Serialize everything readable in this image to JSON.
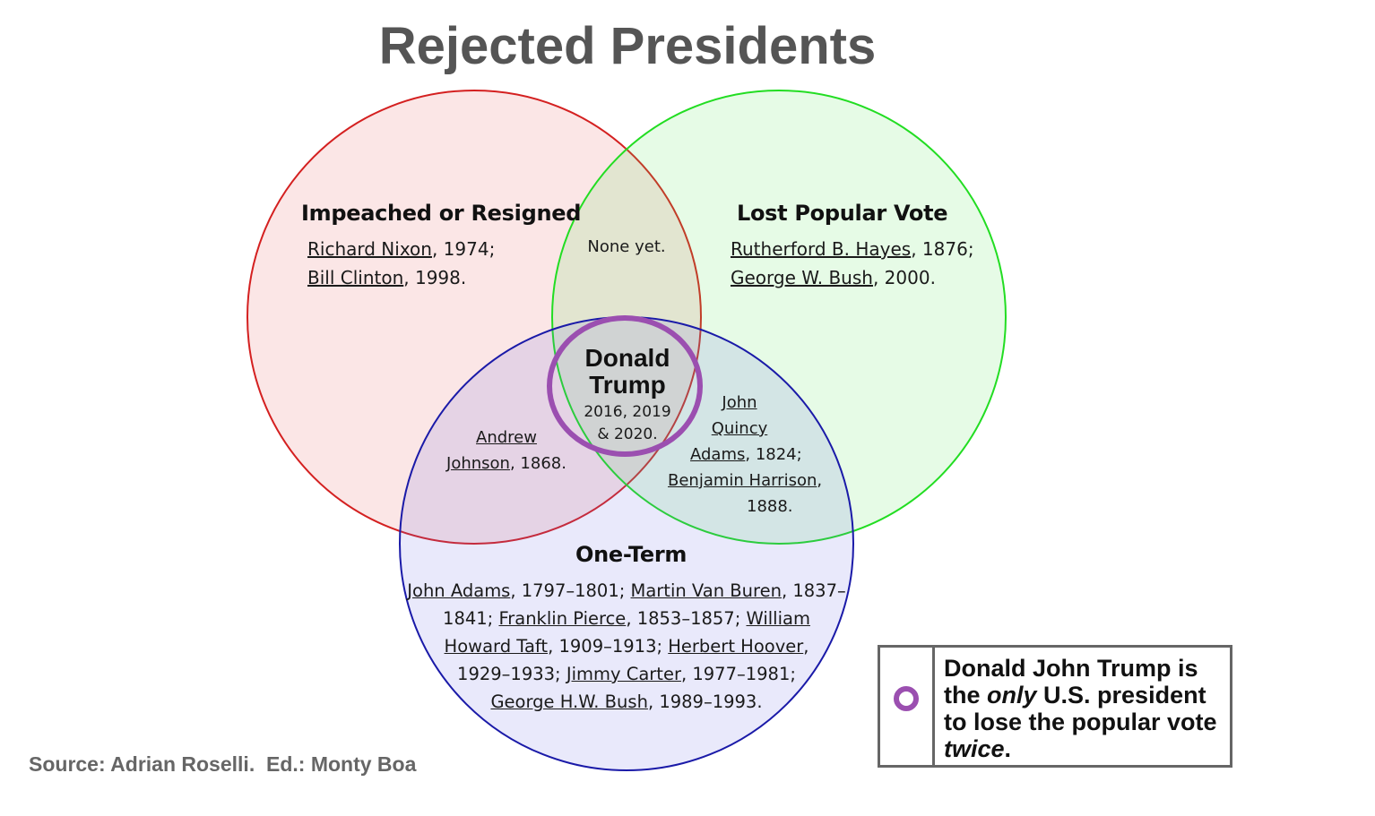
{
  "title": "Rejected Presidents",
  "colors": {
    "impeached": "#d42020",
    "popular_vote": "#22dd22",
    "one_term": "#1a1aa8",
    "highlight": "#9b4fb0"
  },
  "sets": {
    "impeached": {
      "heading": "Impeached or Resigned",
      "members": [
        {
          "name": "Richard Nixon",
          "suffix": ", 1974;"
        },
        {
          "name": "Bill Clinton",
          "suffix": ", 1998."
        }
      ]
    },
    "popular_vote": {
      "heading": "Lost Popular Vote",
      "members": [
        {
          "name": "Rutherford B. Hayes",
          "suffix": ", 1876;"
        },
        {
          "name": "George W. Bush",
          "suffix": ", 2000."
        }
      ]
    },
    "one_term": {
      "heading": "One-Term",
      "lines": [
        [
          {
            "link": "John Adams"
          },
          {
            "text": ", 1797–1801; "
          },
          {
            "link": "Martin Van Buren"
          },
          {
            "text": ", 1837–"
          }
        ],
        [
          {
            "text": "1841; "
          },
          {
            "link": "Franklin Pierce"
          },
          {
            "text": ", 1853–1857; "
          },
          {
            "link": "William"
          }
        ],
        [
          {
            "link": "Howard Taft"
          },
          {
            "text": ", 1909–1913; "
          },
          {
            "link": "Herbert Hoover"
          },
          {
            "text": ","
          }
        ],
        [
          {
            "text": "1929–1933; "
          },
          {
            "link": "Jimmy Carter"
          },
          {
            "text": ", 1977–1981;"
          }
        ],
        [
          {
            "link": "George H.W. Bush"
          },
          {
            "text": ", 1989–1993."
          }
        ]
      ]
    }
  },
  "intersections": {
    "impeached_popular": "None yet.",
    "impeached_oneterm": {
      "name_line1": "Andrew",
      "name_line2": "Johnson",
      "suffix": ", 1868."
    },
    "popular_oneterm": {
      "name1_line1": "John",
      "name1_line2": "Quincy",
      "name1_line3": "Adams",
      "suffix1": ", 1824;",
      "name2": "Benjamin Harrison",
      "suffix2": ",",
      "year2": "1888."
    },
    "all_three": {
      "name_line1": "Donald",
      "name_line2": "Trump",
      "years_line1": "2016, 2019",
      "years_line2": "& 2020."
    }
  },
  "legend": {
    "text_before": "Donald John Trump is the ",
    "emphasis": "only",
    "text_middle": " U.S. president to lose the popular vote ",
    "emphasis2": "twice",
    "text_after": "."
  },
  "source": "Source: Adrian Roselli.  Ed.: Monty Boa"
}
